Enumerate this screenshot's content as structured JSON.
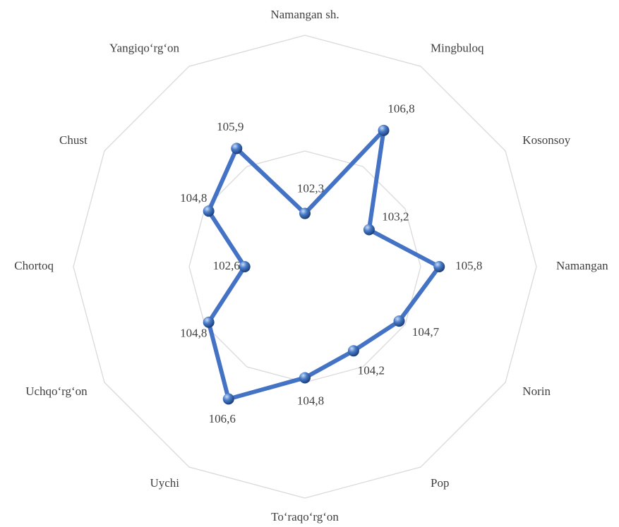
{
  "chart_data": {
    "type": "radar",
    "categories": [
      "Namangan sh.",
      "Mingbuloq",
      "Kosonsoy",
      "Namangan",
      "Norin",
      "Pop",
      "To‘raqo‘rg‘on",
      "Uychi",
      "Uchqo‘rg‘on",
      "Chortoq",
      "Chust",
      "Yangiqo‘rg‘on"
    ],
    "values": [
      102.3,
      106.8,
      103.2,
      105.8,
      104.7,
      104.2,
      104.8,
      106.6,
      104.8,
      102.6,
      104.8,
      105.9
    ],
    "value_labels": [
      "102,3",
      "106,8",
      "103,2",
      "105,8",
      "104,7",
      "104,2",
      "104,8",
      "106,6",
      "104,8",
      "102,6",
      "104,8",
      "105,9"
    ],
    "color": "#4472c4",
    "ylim": [
      100,
      110
    ],
    "yticks": [
      100,
      105,
      110
    ],
    "grid": true
  }
}
